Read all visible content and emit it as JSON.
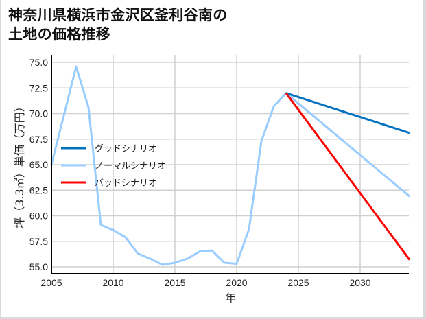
{
  "title": "神奈川県横浜市金沢区釜利谷南の\n土地の価格推移",
  "chart_data": {
    "type": "line",
    "title": "神奈川県横浜市金沢区釜利谷南の土地の価格推移",
    "xlabel": "年",
    "ylabel": "坪（3.3㎡）単価（万円）",
    "xlim": [
      2005,
      2034
    ],
    "ylim": [
      54.3,
      75.5
    ],
    "xticks": [
      2005,
      2010,
      2015,
      2020,
      2025,
      2030
    ],
    "yticks": [
      55.0,
      57.5,
      60.0,
      62.5,
      65.0,
      67.5,
      70.0,
      72.5,
      75.0
    ],
    "grid": true,
    "legend_position": "center-left",
    "series": [
      {
        "name": "グッドシナリオ",
        "color": "#0070c0",
        "x": [
          2024,
          2034
        ],
        "y": [
          72.0,
          68.1
        ]
      },
      {
        "name": "ノーマルシナリオ",
        "color": "#99ccff",
        "x": [
          2005,
          2007,
          2008,
          2009,
          2010,
          2011,
          2012,
          2013,
          2014,
          2015,
          2016,
          2017,
          2018,
          2019,
          2020,
          2021,
          2022,
          2023,
          2024,
          2034
        ],
        "y": [
          65.0,
          74.6,
          70.6,
          59.1,
          58.6,
          57.9,
          56.3,
          55.8,
          55.2,
          55.4,
          55.8,
          56.5,
          56.6,
          55.4,
          55.3,
          58.7,
          67.3,
          70.7,
          72.0,
          61.9
        ]
      },
      {
        "name": "バッドシナリオ",
        "color": "#ff0000",
        "x": [
          2024,
          2034
        ],
        "y": [
          72.0,
          55.7
        ]
      }
    ]
  },
  "axes": {
    "x_ticks": [
      "2005",
      "2010",
      "2015",
      "2020",
      "2025",
      "2030"
    ],
    "y_ticks": [
      "75.0",
      "72.5",
      "70.0",
      "67.5",
      "65.0",
      "62.5",
      "60.0",
      "57.5",
      "55.0"
    ],
    "xlabel": "年",
    "ylabel": "坪（3.3㎡）単価（万円）"
  },
  "legend": [
    {
      "label": "グッドシナリオ",
      "color": "#0070c0"
    },
    {
      "label": "ノーマルシナリオ",
      "color": "#99ccff"
    },
    {
      "label": "バッドシナリオ",
      "color": "#ff0000"
    }
  ]
}
